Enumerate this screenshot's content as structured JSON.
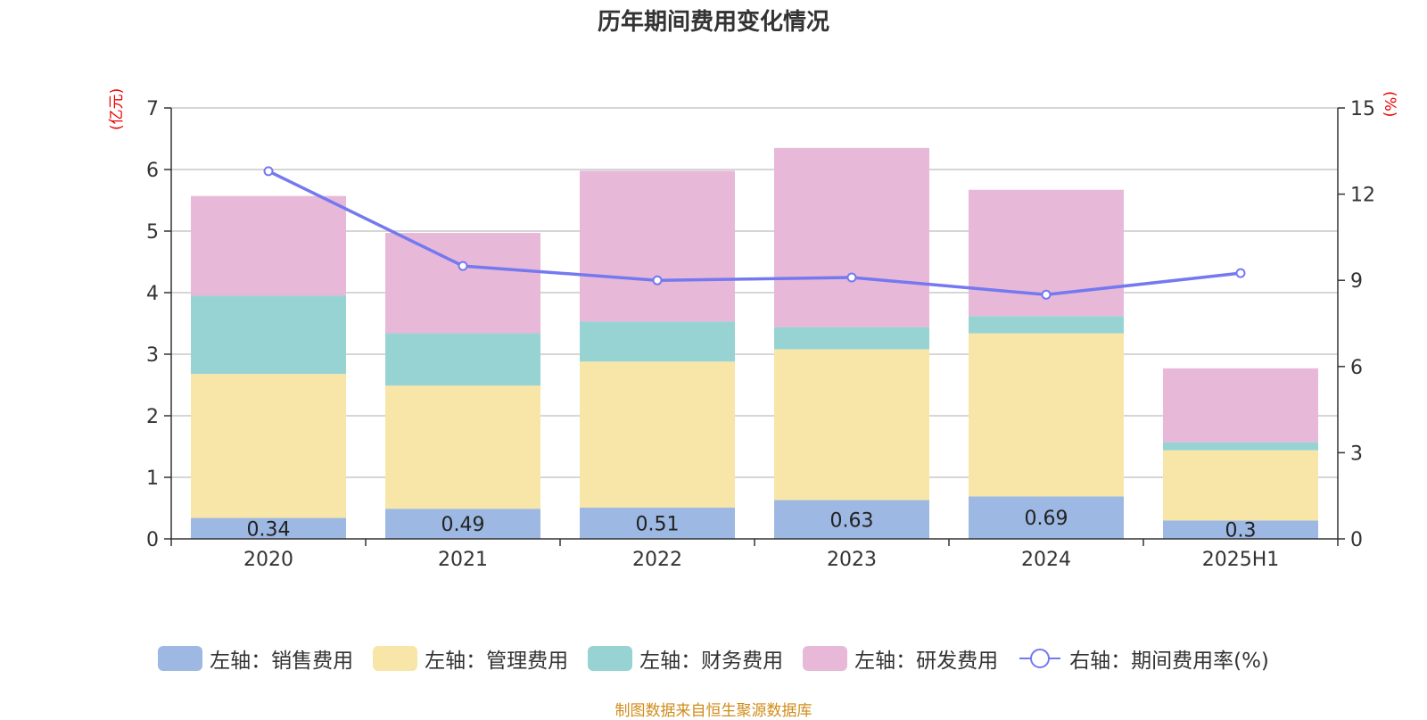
{
  "chart_data": {
    "type": "bar",
    "title": "历年期间费用变化情况",
    "left_axis": {
      "unit_label": "(亿元)",
      "ylim": [
        0,
        7
      ],
      "ticks": [
        "0",
        "1",
        "2",
        "3",
        "4",
        "5",
        "6",
        "7"
      ]
    },
    "right_axis": {
      "unit_label": "(%)",
      "ylim": [
        0,
        15
      ],
      "ticks": [
        "0",
        "3",
        "6",
        "9",
        "12",
        "15"
      ]
    },
    "categories": [
      "2020",
      "2021",
      "2022",
      "2023",
      "2024",
      "2025H1"
    ],
    "stacked": true,
    "grid": true,
    "legend_position": "bottom",
    "series": [
      {
        "name": "左轴：销售费用",
        "type": "bar",
        "axis": "left",
        "color": "#9db8e2",
        "values": [
          0.34,
          0.49,
          0.51,
          0.63,
          0.69,
          0.3
        ],
        "data_labels": [
          "0.34",
          "0.49",
          "0.51",
          "0.63",
          "0.69",
          "0.3"
        ]
      },
      {
        "name": "左轴：管理费用",
        "type": "bar",
        "axis": "left",
        "color": "#f8e6a8",
        "values": [
          2.34,
          2.0,
          2.37,
          2.45,
          2.65,
          1.14
        ]
      },
      {
        "name": "左轴：财务费用",
        "type": "bar",
        "axis": "left",
        "color": "#98d3d4",
        "values": [
          1.27,
          0.85,
          0.65,
          0.36,
          0.28,
          0.13
        ]
      },
      {
        "name": "左轴：研发费用",
        "type": "bar",
        "axis": "left",
        "color": "#e7b8d8",
        "values": [
          1.62,
          1.63,
          2.45,
          2.91,
          2.05,
          1.2
        ]
      },
      {
        "name": "右轴：期间费用率(%)",
        "type": "line",
        "axis": "right",
        "color": "#7479f0",
        "values": [
          12.8,
          9.5,
          9.0,
          9.1,
          8.5,
          9.25
        ]
      }
    ],
    "source_note": "制图数据来自恒生聚源数据库"
  }
}
